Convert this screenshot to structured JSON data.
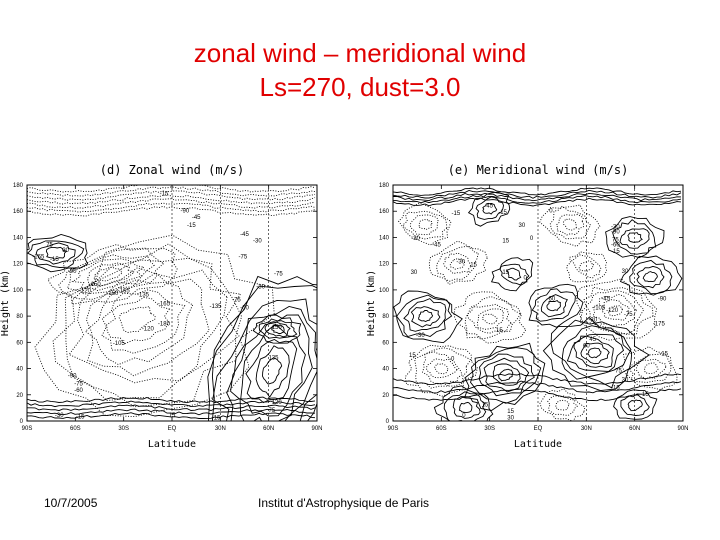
{
  "slide": {
    "title_line1": "zonal wind – meridional wind",
    "title_line2": "Ls=270, dust=3.0",
    "footer_date": "10/7/2005",
    "footer_institution": "Institut d'Astrophysique de Paris"
  },
  "colors": {
    "title": "#e00000",
    "contour": "#000000"
  },
  "chart_data": [
    {
      "type": "contour",
      "title": "(d) Zonal wind (m/s)",
      "xlabel": "Latitude",
      "ylabel": "Height (km)",
      "xticks": [
        "90S",
        "60S",
        "30S",
        "EQ",
        "30N",
        "60N",
        "90N"
      ],
      "yticks": [
        "0",
        "20",
        "40",
        "60",
        "80",
        "100",
        "120",
        "140",
        "160",
        "180"
      ],
      "xlim": [
        -90,
        90
      ],
      "ylim": [
        0,
        180
      ],
      "negative_contours": "dotted",
      "contour_labels": [
        {
          "text": "-15",
          "lat": -5,
          "h": 172
        },
        {
          "text": "-90",
          "lat": 8,
          "h": 159
        },
        {
          "text": "-45",
          "lat": 15,
          "h": 154
        },
        {
          "text": "-15",
          "lat": 12,
          "h": 148
        },
        {
          "text": "-45",
          "lat": 45,
          "h": 141
        },
        {
          "text": "-30",
          "lat": 53,
          "h": 136
        },
        {
          "text": "75",
          "lat": -76,
          "h": 133
        },
        {
          "text": "30",
          "lat": -66,
          "h": 129
        },
        {
          "text": "-165",
          "lat": -83,
          "h": 124
        },
        {
          "text": "-15",
          "lat": -73,
          "h": 122
        },
        {
          "text": "-75",
          "lat": 44,
          "h": 124
        },
        {
          "text": "-90",
          "lat": -62,
          "h": 113
        },
        {
          "text": "-75",
          "lat": 66,
          "h": 111
        },
        {
          "text": "-150",
          "lat": -48,
          "h": 103
        },
        {
          "text": "-165",
          "lat": -30,
          "h": 98
        },
        {
          "text": "-120",
          "lat": -54,
          "h": 98
        },
        {
          "text": "-150",
          "lat": -37,
          "h": 96
        },
        {
          "text": "-135",
          "lat": -18,
          "h": 95
        },
        {
          "text": "-30",
          "lat": 55,
          "h": 101
        },
        {
          "text": "-165",
          "lat": -5,
          "h": 88
        },
        {
          "text": "-75",
          "lat": 40,
          "h": 91
        },
        {
          "text": "-135",
          "lat": 27,
          "h": 86
        },
        {
          "text": "-60",
          "lat": 45,
          "h": 85
        },
        {
          "text": "-180",
          "lat": -5,
          "h": 73
        },
        {
          "text": "-120",
          "lat": -15,
          "h": 69
        },
        {
          "text": "150",
          "lat": 65,
          "h": 70
        },
        {
          "text": "-105",
          "lat": -33,
          "h": 58
        },
        {
          "text": "135",
          "lat": 63,
          "h": 47
        },
        {
          "text": "-90",
          "lat": -62,
          "h": 33
        },
        {
          "text": "-75",
          "lat": -58,
          "h": 27
        },
        {
          "text": "-60",
          "lat": -58,
          "h": 22
        },
        {
          "text": "120",
          "lat": 65,
          "h": 13
        },
        {
          "text": "75",
          "lat": 62,
          "h": 7
        },
        {
          "text": "-30",
          "lat": -70,
          "h": 3
        },
        {
          "text": "-15",
          "lat": -57,
          "h": 2
        },
        {
          "text": "15",
          "lat": 0,
          "h": 3
        },
        {
          "text": "15",
          "lat": 28,
          "h": 1
        }
      ]
    },
    {
      "type": "contour",
      "title": "(e) Meridional wind (m/s)",
      "xlabel": "Latitude",
      "ylabel": "Height (km)",
      "xticks": [
        "90S",
        "60S",
        "30S",
        "EQ",
        "30N",
        "60N",
        "90N"
      ],
      "yticks": [
        "0",
        "20",
        "40",
        "60",
        "80",
        "100",
        "120",
        "140",
        "160",
        "180"
      ],
      "xlim": [
        -90,
        90
      ],
      "ylim": [
        0,
        180
      ],
      "negative_contours": "dotted",
      "contour_labels": [
        {
          "text": "45",
          "lat": -30,
          "h": 163
        },
        {
          "text": "-15",
          "lat": -22,
          "h": 158
        },
        {
          "text": "-15",
          "lat": -51,
          "h": 157
        },
        {
          "text": "0",
          "lat": 8,
          "h": 159
        },
        {
          "text": "30",
          "lat": -10,
          "h": 148
        },
        {
          "text": "-30",
          "lat": -76,
          "h": 138
        },
        {
          "text": "-30",
          "lat": 48,
          "h": 147
        },
        {
          "text": "15",
          "lat": -20,
          "h": 136
        },
        {
          "text": "-45",
          "lat": -63,
          "h": 133
        },
        {
          "text": "0",
          "lat": -4,
          "h": 138
        },
        {
          "text": "-90",
          "lat": 48,
          "h": 143
        },
        {
          "text": "75",
          "lat": 48,
          "h": 137
        },
        {
          "text": "-60",
          "lat": 48,
          "h": 133
        },
        {
          "text": "-15",
          "lat": 48,
          "h": 128
        },
        {
          "text": "-30",
          "lat": -48,
          "h": 120
        },
        {
          "text": "15",
          "lat": -40,
          "h": 118
        },
        {
          "text": "15",
          "lat": -20,
          "h": 112
        },
        {
          "text": "30",
          "lat": -77,
          "h": 112
        },
        {
          "text": "30",
          "lat": 54,
          "h": 113
        },
        {
          "text": "0",
          "lat": -8,
          "h": 108
        },
        {
          "text": "-60",
          "lat": 8,
          "h": 92
        },
        {
          "text": "-45",
          "lat": 42,
          "h": 92
        },
        {
          "text": "-90",
          "lat": 77,
          "h": 92
        },
        {
          "text": "-105",
          "lat": 38,
          "h": 85
        },
        {
          "text": "-120",
          "lat": 46,
          "h": 83
        },
        {
          "text": "-75",
          "lat": 56,
          "h": 80
        },
        {
          "text": "-30",
          "lat": 34,
          "h": 76
        },
        {
          "text": "15",
          "lat": -24,
          "h": 68
        },
        {
          "text": "-30",
          "lat": -73,
          "h": 64
        },
        {
          "text": "-175",
          "lat": 75,
          "h": 73
        },
        {
          "text": "45",
          "lat": 34,
          "h": 61
        },
        {
          "text": "60",
          "lat": 30,
          "h": 56
        },
        {
          "text": "15",
          "lat": -78,
          "h": 49
        },
        {
          "text": "0",
          "lat": -53,
          "h": 46
        },
        {
          "text": "-15",
          "lat": 78,
          "h": 50
        },
        {
          "text": "75",
          "lat": 50,
          "h": 37
        },
        {
          "text": "30",
          "lat": 54,
          "h": 30
        },
        {
          "text": "-15",
          "lat": 48,
          "h": 24
        },
        {
          "text": "-15",
          "lat": 66,
          "h": 19
        },
        {
          "text": "15",
          "lat": -33,
          "h": 11
        },
        {
          "text": "15",
          "lat": -17,
          "h": 6
        },
        {
          "text": "30",
          "lat": -17,
          "h": 1
        },
        {
          "text": "0",
          "lat": -46,
          "h": 3
        }
      ]
    }
  ]
}
